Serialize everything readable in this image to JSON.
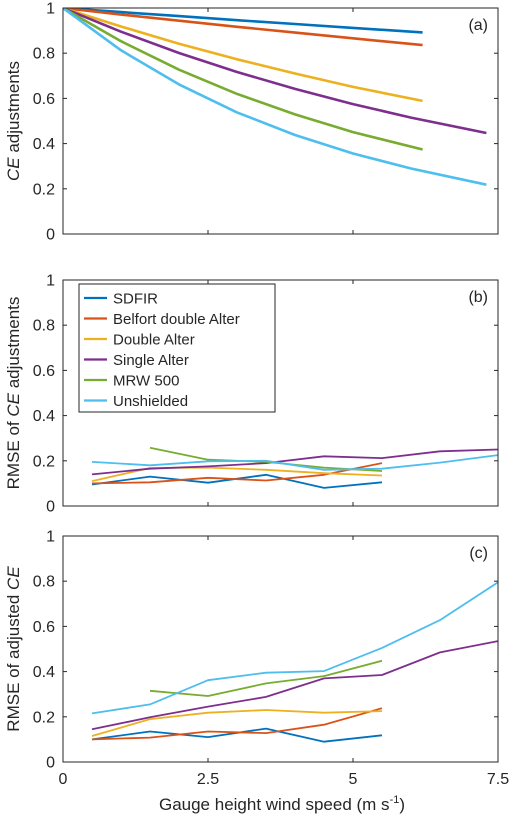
{
  "figure": {
    "xlabel_main": "Gauge height wind speed (m s",
    "xlabel_sup": "-1",
    "xlabel_close": ")"
  },
  "chart_data": [
    {
      "type": "line",
      "panel_label": "(a)",
      "ylabel_italic": "CE",
      "ylabel_rest": " adjustments",
      "xlim": [
        0,
        7.5
      ],
      "ylim": [
        0,
        1
      ],
      "xticks": [
        0,
        2.5,
        5,
        7.5
      ],
      "xtick_labels": [],
      "yticks": [
        0,
        0.2,
        0.4,
        0.6,
        0.8,
        1
      ],
      "ytick_labels": [
        "0",
        "0.2",
        "0.4",
        "0.6",
        "0.8",
        "1"
      ],
      "series": [
        {
          "name": "SDFIR",
          "color": "#0072bd",
          "x": [
            0,
            1,
            2,
            3,
            4,
            5,
            6.2
          ],
          "y": [
            1.0,
            0.982,
            0.964,
            0.946,
            0.929,
            0.912,
            0.892
          ]
        },
        {
          "name": "Belfort double Alter",
          "color": "#d95319",
          "x": [
            0,
            1,
            2,
            3,
            4,
            5,
            6.2
          ],
          "y": [
            1.0,
            0.971,
            0.944,
            0.917,
            0.891,
            0.866,
            0.836
          ]
        },
        {
          "name": "Double Alter",
          "color": "#edb120",
          "x": [
            0,
            1,
            2,
            3,
            4,
            5,
            6.2
          ],
          "y": [
            1.0,
            0.918,
            0.842,
            0.773,
            0.71,
            0.651,
            0.589
          ]
        },
        {
          "name": "Single Alter",
          "color": "#7e2f8e",
          "x": [
            0,
            1,
            2,
            3,
            4,
            5,
            6,
            7.3
          ],
          "y": [
            1.0,
            0.895,
            0.801,
            0.717,
            0.642,
            0.575,
            0.515,
            0.447
          ]
        },
        {
          "name": "MRW 500",
          "color": "#77ac30",
          "x": [
            0,
            1,
            2,
            3,
            4,
            5,
            6.2
          ],
          "y": [
            1.0,
            0.853,
            0.727,
            0.62,
            0.529,
            0.451,
            0.374
          ]
        },
        {
          "name": "Unshielded",
          "color": "#4dbeee",
          "x": [
            0,
            1,
            2,
            3,
            4,
            5,
            6,
            7.3
          ],
          "y": [
            1.0,
            0.813,
            0.662,
            0.538,
            0.438,
            0.356,
            0.29,
            0.218
          ]
        }
      ]
    },
    {
      "type": "line",
      "panel_label": "(b)",
      "ylabel_prefix": "RMSE of ",
      "ylabel_italic": "CE",
      "ylabel_rest": " adjustments",
      "xlim": [
        0,
        7.5
      ],
      "ylim": [
        0,
        1
      ],
      "xticks": [
        0,
        2.5,
        5,
        7.5
      ],
      "xtick_labels": [],
      "yticks": [
        0,
        0.2,
        0.4,
        0.6,
        0.8,
        1
      ],
      "ytick_labels": [
        "0",
        "0.2",
        "0.4",
        "0.6",
        "0.8",
        "1"
      ],
      "legend": "top-left",
      "series": [
        {
          "name": "SDFIR",
          "color": "#0072bd",
          "x": [
            0.5,
            1.5,
            2.5,
            3.5,
            4.5,
            5.5
          ],
          "y": [
            0.095,
            0.13,
            0.103,
            0.138,
            0.08,
            0.105
          ]
        },
        {
          "name": "Belfort double Alter",
          "color": "#d95319",
          "x": [
            0.5,
            1.5,
            2.5,
            3.5,
            4.5,
            5.5
          ],
          "y": [
            0.1,
            0.105,
            0.125,
            0.113,
            0.138,
            0.19
          ]
        },
        {
          "name": "Double Alter",
          "color": "#edb120",
          "x": [
            0.5,
            1.5,
            2.5,
            3.5,
            4.5,
            5.5
          ],
          "y": [
            0.11,
            0.168,
            0.17,
            0.16,
            0.145,
            0.135
          ]
        },
        {
          "name": "Single Alter",
          "color": "#7e2f8e",
          "x": [
            0.5,
            1.5,
            2.5,
            3.5,
            4.5,
            5.5,
            6.5,
            7.5
          ],
          "y": [
            0.14,
            0.165,
            0.175,
            0.19,
            0.22,
            0.212,
            0.242,
            0.25
          ]
        },
        {
          "name": "MRW 500",
          "color": "#77ac30",
          "x": [
            1.5,
            2.5,
            3.5,
            4.5,
            5.5
          ],
          "y": [
            0.258,
            0.205,
            0.195,
            0.17,
            0.155
          ]
        },
        {
          "name": "Unshielded",
          "color": "#4dbeee",
          "x": [
            0.5,
            1.5,
            2.5,
            3.5,
            4.5,
            5.5,
            6.5,
            7.5
          ],
          "y": [
            0.195,
            0.18,
            0.198,
            0.2,
            0.16,
            0.165,
            0.192,
            0.225
          ]
        }
      ]
    },
    {
      "type": "line",
      "panel_label": "(c)",
      "ylabel_prefix": "RMSE of adjusted ",
      "ylabel_italic": "CE",
      "ylabel_rest": "",
      "xlim": [
        0,
        7.5
      ],
      "ylim": [
        0,
        1
      ],
      "xticks": [
        0,
        2.5,
        5,
        7.5
      ],
      "xtick_labels": [
        "0",
        "2.5",
        "5",
        "7.5"
      ],
      "yticks": [
        0,
        0.2,
        0.4,
        0.6,
        0.8,
        1
      ],
      "ytick_labels": [
        "0",
        "0.2",
        "0.4",
        "0.6",
        "0.8",
        "1"
      ],
      "series": [
        {
          "name": "SDFIR",
          "color": "#0072bd",
          "x": [
            0.5,
            1.5,
            2.5,
            3.5,
            4.5,
            5.5
          ],
          "y": [
            0.1,
            0.135,
            0.11,
            0.148,
            0.09,
            0.118
          ]
        },
        {
          "name": "Belfort double Alter",
          "color": "#d95319",
          "x": [
            0.5,
            1.5,
            2.5,
            3.5,
            4.5,
            5.5
          ],
          "y": [
            0.1,
            0.108,
            0.135,
            0.128,
            0.165,
            0.238
          ]
        },
        {
          "name": "Double Alter",
          "color": "#edb120",
          "x": [
            0.5,
            1.5,
            2.5,
            3.5,
            4.5,
            5.5
          ],
          "y": [
            0.115,
            0.19,
            0.218,
            0.23,
            0.218,
            0.225
          ]
        },
        {
          "name": "Single Alter",
          "color": "#7e2f8e",
          "x": [
            0.5,
            1.5,
            2.5,
            3.5,
            4.5,
            5.5,
            6.5,
            7.5
          ],
          "y": [
            0.145,
            0.198,
            0.245,
            0.288,
            0.37,
            0.385,
            0.485,
            0.535
          ]
        },
        {
          "name": "MRW 500",
          "color": "#77ac30",
          "x": [
            1.5,
            2.5,
            3.5,
            4.5,
            5.5
          ],
          "y": [
            0.315,
            0.292,
            0.348,
            0.38,
            0.448
          ]
        },
        {
          "name": "Unshielded",
          "color": "#4dbeee",
          "x": [
            0.5,
            1.5,
            2.5,
            3.5,
            4.5,
            5.5,
            6.5,
            7.5
          ],
          "y": [
            0.215,
            0.255,
            0.362,
            0.395,
            0.402,
            0.505,
            0.628,
            0.795
          ]
        }
      ]
    }
  ]
}
